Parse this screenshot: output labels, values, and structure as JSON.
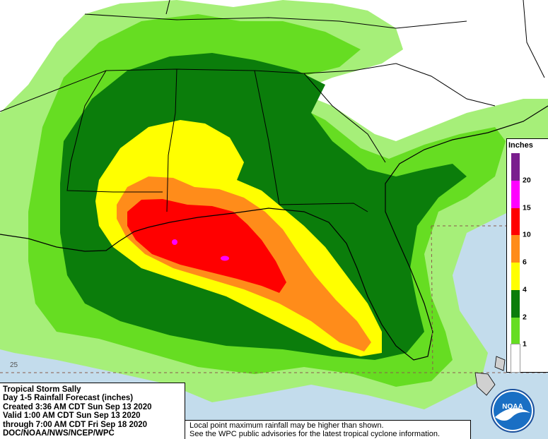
{
  "title_block": {
    "lines": [
      "Tropical Storm Sally",
      "Day 1-5 Rainfall Forecast (inches)",
      "Created 3:36 AM CDT Sun Sep 13 2020",
      "Valid 1:00 AM CDT Sun Sep 13 2020",
      "through 7:00 AM CDT Fri Sep 18 2020",
      "DOC/NOAA/NWS/NCEP/WPC"
    ]
  },
  "disclaimer": {
    "lines": [
      "Local point maximum rainfall may be higher than shown.",
      "See the WPC public advisories for the latest tropical cyclone information."
    ]
  },
  "legend": {
    "title": "Inches",
    "bins": [
      {
        "label": "20",
        "color": "#7a1e8e"
      },
      {
        "label": "15",
        "color": "#ff00ff"
      },
      {
        "label": "10",
        "color": "#ff0000"
      },
      {
        "label": "6",
        "color": "#ff8c1a"
      },
      {
        "label": "4",
        "color": "#ffff00"
      },
      {
        "label": "2",
        "color": "#0b7d0b"
      },
      {
        "label": "1",
        "color": "#66dd22"
      },
      {
        "label": "",
        "color": "#ffffff"
      }
    ]
  },
  "latitude_label": "25",
  "logo": {
    "text": "NOAA"
  },
  "colors": {
    "water": "#c3dcec",
    "light_green": "#a6ef79",
    "medium_green": "#66dd22",
    "dark_green": "#0b7d0b",
    "yellow": "#ffff00",
    "orange": "#ff8c1a",
    "red": "#ff0000",
    "magenta": "#ff00ff"
  }
}
